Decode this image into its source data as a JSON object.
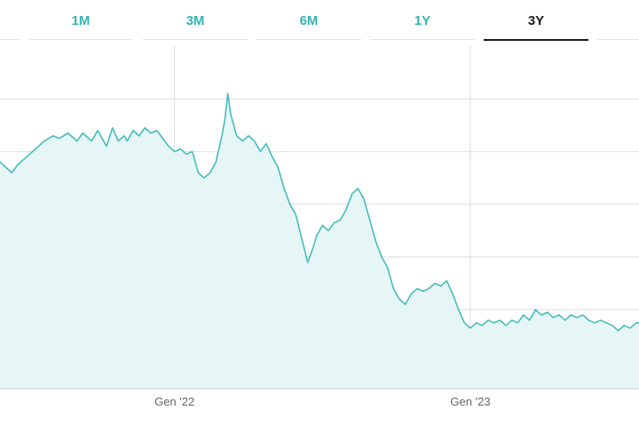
{
  "range_tabs": [
    {
      "label": "",
      "active": false
    },
    {
      "label": "1M",
      "active": false
    },
    {
      "label": "3M",
      "active": false
    },
    {
      "label": "6M",
      "active": false
    },
    {
      "label": "1Y",
      "active": false
    },
    {
      "label": "3Y",
      "active": true
    },
    {
      "label": "",
      "active": false
    }
  ],
  "colors": {
    "line": "#46bcbc",
    "fill": "#e6f6f6",
    "grid": "#dedede",
    "tab_text": "#33b3b3",
    "tab_active": "#1c1c1c"
  },
  "chart_data": {
    "type": "area",
    "title": "",
    "xlabel": "",
    "ylabel": "",
    "grid": true,
    "legend": "none",
    "x_ticks": [
      {
        "label": "Gen '22",
        "x": 2022.0
      },
      {
        "label": "Gen '23",
        "x": 2023.0
      }
    ],
    "xlim": [
      2021.41,
      2023.57
    ],
    "ylim": [
      -5,
      60
    ],
    "y_grid": [
      0,
      10,
      20,
      30,
      40,
      50
    ],
    "series": [
      {
        "name": "",
        "x": [
          2021.41,
          2021.43,
          2021.45,
          2021.47,
          2021.5,
          2021.53,
          2021.56,
          2021.59,
          2021.61,
          2021.64,
          2021.67,
          2021.69,
          2021.72,
          2021.74,
          2021.77,
          2021.79,
          2021.81,
          2021.83,
          2021.84,
          2021.86,
          2021.88,
          2021.9,
          2021.92,
          2021.94,
          2021.96,
          2021.98,
          2022.0,
          2022.02,
          2022.04,
          2022.06,
          2022.08,
          2022.1,
          2022.12,
          2022.14,
          2022.16,
          2022.17,
          2022.18,
          2022.19,
          2022.21,
          2022.23,
          2022.25,
          2022.27,
          2022.29,
          2022.31,
          2022.33,
          2022.35,
          2022.37,
          2022.39,
          2022.41,
          2022.43,
          2022.45,
          2022.47,
          2022.48,
          2022.5,
          2022.52,
          2022.54,
          2022.56,
          2022.58,
          2022.6,
          2022.62,
          2022.64,
          2022.66,
          2022.68,
          2022.7,
          2022.72,
          2022.74,
          2022.76,
          2022.78,
          2022.8,
          2022.82,
          2022.84,
          2022.86,
          2022.88,
          2022.9,
          2022.92,
          2022.94,
          2022.96,
          2022.98,
          2023.0,
          2023.02,
          2023.04,
          2023.06,
          2023.08,
          2023.1,
          2023.12,
          2023.14,
          2023.16,
          2023.18,
          2023.2,
          2023.22,
          2023.24,
          2023.26,
          2023.28,
          2023.3,
          2023.32,
          2023.34,
          2023.36,
          2023.38,
          2023.4,
          2023.42,
          2023.44,
          2023.46,
          2023.48,
          2023.5,
          2023.52,
          2023.54,
          2023.56,
          2023.57
        ],
        "values": [
          38,
          37,
          36,
          37.5,
          39,
          40.5,
          42,
          43,
          42.5,
          43.5,
          42,
          43.5,
          42,
          44,
          41,
          44.5,
          42,
          43,
          42,
          44,
          43,
          44.5,
          43.5,
          44,
          42.5,
          41,
          40,
          40.5,
          39.5,
          40,
          36,
          35,
          36,
          38,
          43,
          46,
          51,
          47,
          43,
          42,
          43,
          42,
          40,
          41.5,
          39,
          37,
          33,
          30,
          28,
          23.5,
          19,
          22,
          24,
          26,
          25,
          26.5,
          27,
          29,
          32,
          33,
          31,
          27,
          23,
          20,
          18,
          14,
          12,
          11,
          13,
          14,
          13.5,
          14,
          15,
          14.5,
          15.5,
          13,
          10,
          7.5,
          6.5,
          7.5,
          7,
          8,
          7.5,
          8,
          7,
          8,
          7.5,
          9,
          8,
          10,
          9,
          9.5,
          8.5,
          9,
          8,
          9,
          8.5,
          9,
          8,
          7.5,
          8,
          7.5,
          7,
          6,
          7,
          6.5,
          7.5,
          7.5
        ]
      }
    ]
  }
}
